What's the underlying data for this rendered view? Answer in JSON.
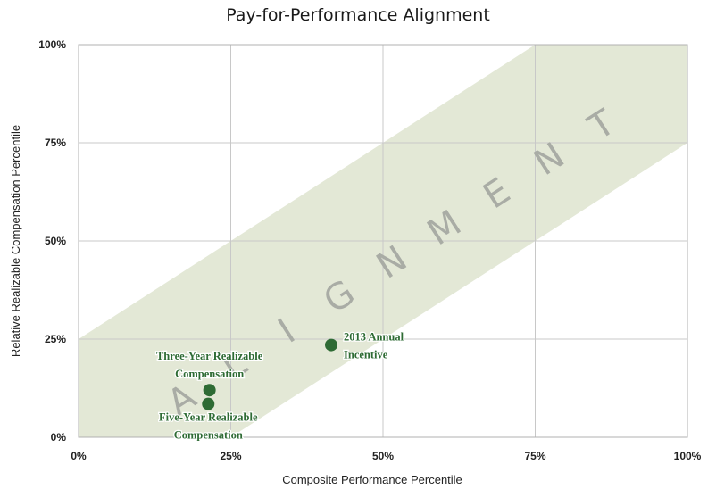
{
  "chart_data": {
    "type": "scatter",
    "title": "Pay-for-Performance Alignment",
    "xlabel": "Composite Performance Percentile",
    "ylabel": "Relative Realizable Compensation Percentile",
    "xlim": [
      0,
      100
    ],
    "ylim": [
      0,
      100
    ],
    "x_ticks": [
      "0%",
      "25%",
      "50%",
      "75%",
      "100%"
    ],
    "y_ticks": [
      "0%",
      "25%",
      "50%",
      "75%",
      "100%"
    ],
    "grid": true,
    "alignment_band": {
      "label": "ALIGNMENT",
      "offset_above": 25,
      "offset_below": -25,
      "color": "#e3e8d6"
    },
    "points": [
      {
        "label_lines": [
          "2013 Annual",
          "Incentive"
        ],
        "x": 41.5,
        "y": 23.5
      },
      {
        "label_lines": [
          "Three-Year Realizable",
          "Compensation"
        ],
        "x": 21.5,
        "y": 12
      },
      {
        "label_lines": [
          "Five-Year Realizable",
          "Compensation"
        ],
        "x": 21.3,
        "y": 8.5
      }
    ],
    "point_color": "#2e6b34",
    "gridline_color": "#c8c8c8"
  }
}
